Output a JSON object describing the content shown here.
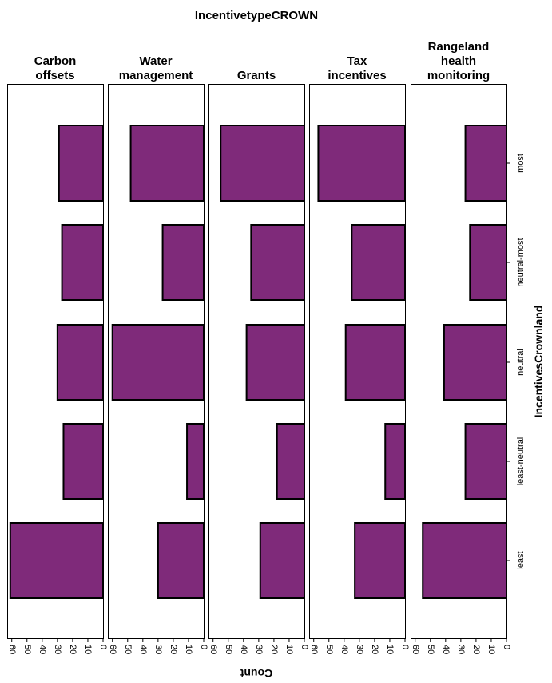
{
  "chart_data": {
    "type": "bar",
    "orientation": "horizontal",
    "title": "IncentivetypeCROWN",
    "xlabel": "Count",
    "ylabel": "IncentivesCrownland",
    "xlim": [
      0,
      63
    ],
    "x_ticks": [
      60,
      50,
      40,
      30,
      20,
      10,
      0
    ],
    "x_axis_reversed": true,
    "categories": [
      "most",
      "neutral-most",
      "neutral",
      "least-neutral",
      "least"
    ],
    "bar_color": "#7f2a7a",
    "grid": false,
    "legend": "none",
    "panels": [
      {
        "label_lines": [
          "Carbon",
          "offsets"
        ],
        "values": [
          29,
          27,
          30,
          26,
          61
        ]
      },
      {
        "label_lines": [
          "Water",
          "management"
        ],
        "values": [
          48,
          27,
          60,
          11,
          30
        ]
      },
      {
        "label_lines": [
          "Grants"
        ],
        "values": [
          55,
          35,
          38,
          18,
          29
        ]
      },
      {
        "label_lines": [
          "Tax",
          "incentives"
        ],
        "values": [
          57,
          35,
          39,
          13,
          33
        ]
      },
      {
        "label_lines": [
          "Rangeland",
          "health",
          "monitoring"
        ],
        "values": [
          27,
          24,
          41,
          27,
          55
        ]
      }
    ]
  }
}
